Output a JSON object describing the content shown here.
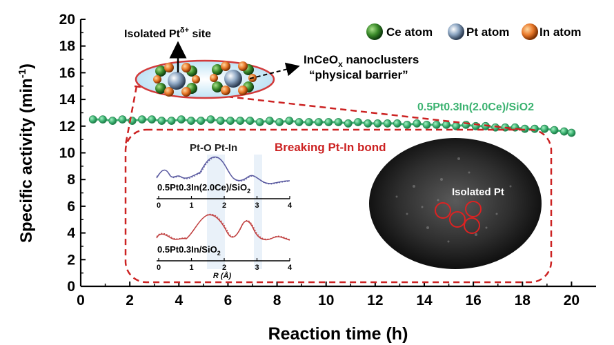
{
  "chart_data": {
    "type": "line",
    "xlabel": "Reaction time (h)",
    "ylabel": "Specific activity (min",
    "ylabel_sup": "-1",
    "ylabel_end": ")",
    "xlim": [
      0,
      21
    ],
    "ylim": [
      0,
      20
    ],
    "x_ticks": [
      "0",
      "2",
      "4",
      "6",
      "8",
      "10",
      "12",
      "14",
      "16",
      "18",
      "20"
    ],
    "y_ticks": [
      "0",
      "2",
      "4",
      "6",
      "8",
      "10",
      "12",
      "14",
      "16",
      "18",
      "20"
    ],
    "grid": false,
    "series": [
      {
        "name": "0.5Pt0.3In(2.0Ce)/SiO2",
        "color": "#3cb371",
        "x": [
          0.5,
          0.9,
          1.3,
          1.7,
          2.1,
          2.5,
          2.9,
          3.3,
          3.7,
          4.1,
          4.5,
          4.9,
          5.3,
          5.7,
          6.1,
          6.5,
          6.9,
          7.3,
          7.7,
          8.1,
          8.5,
          8.9,
          9.3,
          9.7,
          10.1,
          10.5,
          10.9,
          11.3,
          11.7,
          12.1,
          12.5,
          12.9,
          13.3,
          13.7,
          14.1,
          14.5,
          14.9,
          15.3,
          15.7,
          16.1,
          16.5,
          16.9,
          17.3,
          17.7,
          18.1,
          18.5,
          18.9,
          19.3,
          19.7,
          20.0
        ],
        "y": [
          12.5,
          12.5,
          12.4,
          12.5,
          12.4,
          12.5,
          12.5,
          12.4,
          12.4,
          12.5,
          12.4,
          12.4,
          12.5,
          12.4,
          12.4,
          12.4,
          12.4,
          12.3,
          12.4,
          12.3,
          12.4,
          12.3,
          12.3,
          12.3,
          12.3,
          12.3,
          12.2,
          12.3,
          12.2,
          12.2,
          12.2,
          12.2,
          12.1,
          12.2,
          12.1,
          12.1,
          12.1,
          12.0,
          12.1,
          12.0,
          12.0,
          11.9,
          11.9,
          11.9,
          11.8,
          11.8,
          11.8,
          11.7,
          11.6,
          11.5
        ]
      }
    ]
  },
  "legend": [
    {
      "name": "Ce atom",
      "color": "#3a8a2a"
    },
    {
      "name": "Pt atom",
      "color": "#7a9ab8"
    },
    {
      "name": "In atom",
      "color": "#e8782a"
    }
  ],
  "annotations": {
    "isolated_site": "Isolated Pt",
    "isolated_site_sup": "δ+",
    "isolated_site_end": " site",
    "nanoclusters_1a": "InCeO",
    "nanoclusters_1sub": "x",
    "nanoclusters_1b": " nanoclusters",
    "nanoclusters_2": "“physical barrier”",
    "breaking": "Breaking Pt-In bond",
    "pto_ptin": "Pt-O Pt-In",
    "isolated_pt": "Isolated Pt"
  },
  "inset_exafs": {
    "top_label": "0.5Pt0.3In(2.0Ce)/SiO",
    "top_label_sub": "2",
    "bottom_label": "0.5Pt0.3In/SiO",
    "bottom_label_sub": "2",
    "xlabel": "R (Å)",
    "xticks": [
      "0",
      "1",
      "2",
      "3",
      "4"
    ],
    "top_color": "#5a5aa0",
    "bottom_color": "#c04040"
  },
  "colors": {
    "dashed_box": "#cc2222",
    "breaking_text": "#cc2222",
    "series_label": "#3cb371"
  }
}
